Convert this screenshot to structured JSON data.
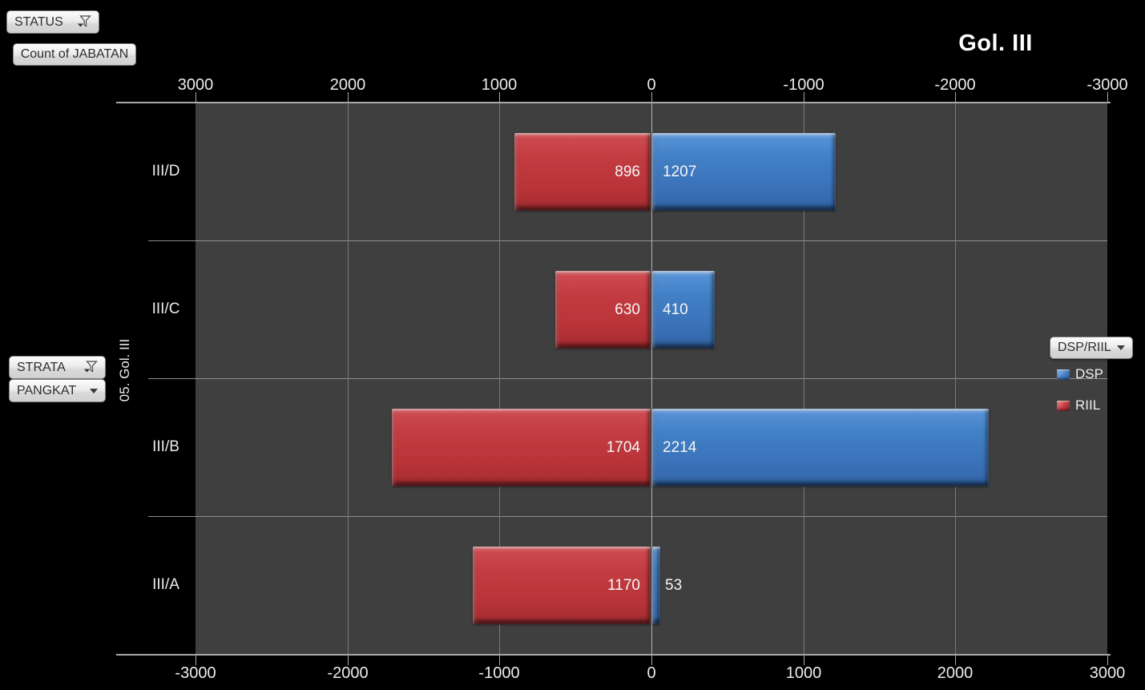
{
  "chart_title": "Gol. III",
  "buttons": {
    "status": "STATUS",
    "count_of_jabatan": "Count of JABATAN",
    "strata": "STRATA",
    "pangkat": "PANGKAT",
    "series_filter": "DSP/RIIL"
  },
  "legend": {
    "items": [
      {
        "label": "DSP",
        "color": "#3f7cc0"
      },
      {
        "label": "RIIL",
        "color": "#c23c41"
      }
    ]
  },
  "axes": {
    "top_tick_labels": [
      "3000",
      "2000",
      "1000",
      "0",
      "-1000",
      "-2000",
      "-3000"
    ],
    "bottom_tick_labels": [
      "-3000",
      "-2000",
      "-1000",
      "0",
      "1000",
      "2000",
      "3000"
    ],
    "category_axis_title": "05. Gol. III",
    "category_labels": [
      "III/D",
      "III/C",
      "III/B",
      "III/A"
    ]
  },
  "chart_data": {
    "type": "bar",
    "subtype": "tornado-horizontal",
    "title": "Gol. III",
    "categories": [
      "III/D",
      "III/C",
      "III/B",
      "III/A"
    ],
    "series": [
      {
        "name": "DSP",
        "color": "#3f7cc0",
        "side": "right",
        "values": [
          1207,
          410,
          2214,
          53
        ]
      },
      {
        "name": "RIIL",
        "color": "#c23c41",
        "side": "left",
        "values": [
          896,
          630,
          1704,
          1170
        ]
      }
    ],
    "value_axis": {
      "min": -3000,
      "max": 3000,
      "step": 1000,
      "top_axis_reversed": true
    },
    "gridlines": true,
    "legend_position": "right",
    "data_labels": "inside-end"
  },
  "colors": {
    "page_background": "#000000",
    "plot_background": "#3f3f3f",
    "gridline": "#7a7a7a",
    "axis_line": "#a8a8a8",
    "label_text": "#ececec",
    "dsp": "#3f7cc0",
    "riil": "#c23c41"
  }
}
